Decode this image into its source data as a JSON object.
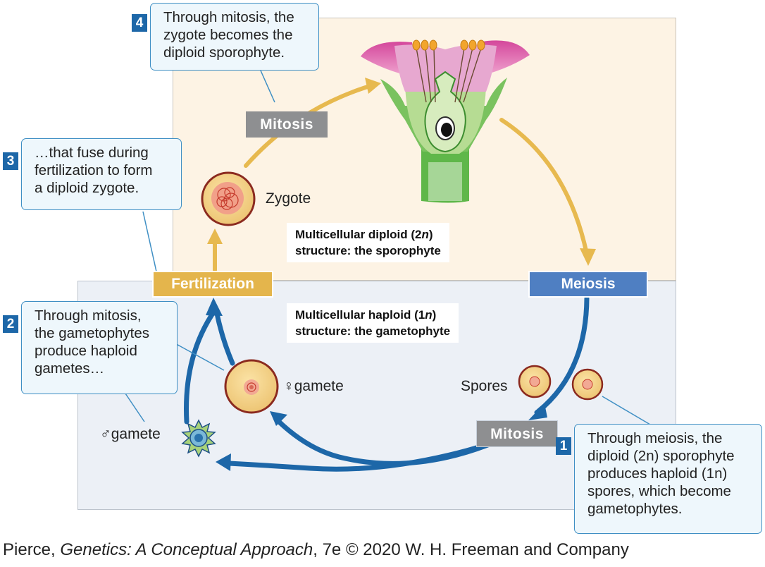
{
  "regions": {
    "diploid": {
      "line1_prefix": "Multicellular diploid (2",
      "line1_n": "n",
      "line1_suffix": ")",
      "line2": "structure: the sporophyte"
    },
    "haploid": {
      "line1_prefix": "Multicellular haploid (1",
      "line1_n": "n",
      "line1_suffix": ")",
      "line2": "structure: the gametophyte"
    }
  },
  "process_labels": {
    "mitosis_top": "Mitosis",
    "mitosis_bottom": "Mitosis",
    "meiosis": "Meiosis",
    "fertilization": "Fertilization"
  },
  "cell_labels": {
    "zygote": "Zygote",
    "spores": "Spores",
    "female_gamete": "♀gamete",
    "male_gamete": "♂gamete"
  },
  "steps": [
    {
      "number": "1",
      "lines": [
        "Through meiosis, the",
        "diploid (2n) sporophyte",
        "produces haploid (1n)",
        "spores, which become",
        "gametophytes."
      ]
    },
    {
      "number": "2",
      "lines": [
        "Through mitosis,",
        "the gametophytes",
        "produce haploid",
        "gametes…"
      ]
    },
    {
      "number": "3",
      "lines": [
        "…that fuse during",
        "fertilization to form",
        "a diploid zygote."
      ]
    },
    {
      "number": "4",
      "lines": [
        "Through mitosis, the",
        "zygote becomes the",
        "diploid sporophyte."
      ]
    }
  ],
  "credit": {
    "author": "Pierce, ",
    "title": "Genetics: A Conceptual Approach",
    "rest": ", 7e © 2020 W. H. Freeman and Company"
  },
  "colors": {
    "diploid_bg": "#fdf3e4",
    "haploid_bg": "#ecf0f6",
    "gold_arrow": "#e7b94f",
    "blue_arrow": "#1d67a8",
    "callout_border": "#3f8fc4"
  }
}
